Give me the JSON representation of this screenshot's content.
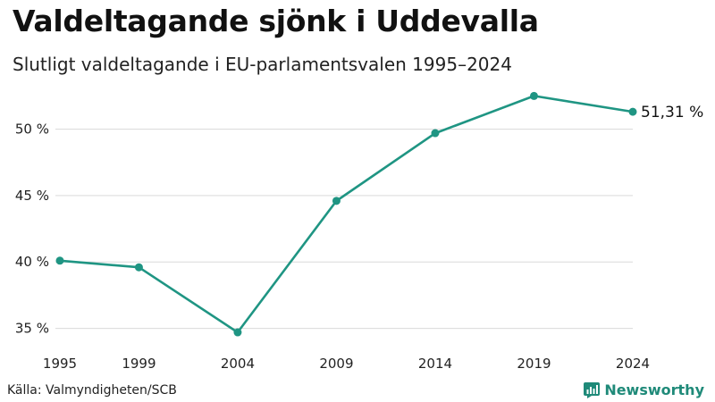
{
  "header": {
    "title": "Valdeltagande sjönk i Uddevalla",
    "subtitle": "Slutligt valdeltagande i EU-parlamentsvalen 1995–2024"
  },
  "chart_data": {
    "type": "line",
    "title": "Valdeltagande sjönk i Uddevalla",
    "subtitle": "Slutligt valdeltagande i EU-parlamentsvalen 1995–2024",
    "xlabel": "",
    "ylabel": "",
    "x": [
      1995,
      1999,
      2004,
      2009,
      2014,
      2019,
      2024
    ],
    "xtick_labels": [
      "1995",
      "1999",
      "2004",
      "2009",
      "2014",
      "2019",
      "2024"
    ],
    "series": [
      {
        "name": "Valdeltagande",
        "values": [
          40.1,
          39.6,
          34.7,
          44.6,
          49.7,
          52.5,
          51.31
        ]
      }
    ],
    "yticks": [
      35,
      40,
      45,
      50
    ],
    "ytick_labels": [
      "35 %",
      "40 %",
      "45 %",
      "50 %"
    ],
    "ylim": [
      34.5,
      53
    ],
    "xlim": [
      1995,
      2024
    ],
    "grid": true,
    "end_label": "51,31 %",
    "color": "#1f9583"
  },
  "footer": {
    "source": "Källa: Valmyndigheten/SCB",
    "brand": "Newsworthy"
  },
  "icons": {
    "brand": "newsworthy-logo-icon"
  }
}
